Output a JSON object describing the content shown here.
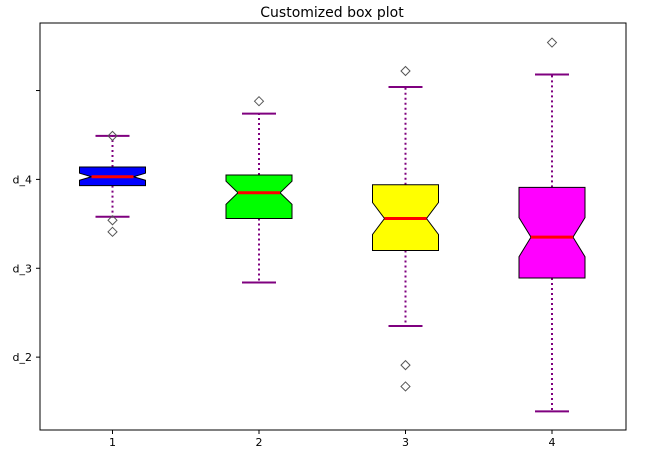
{
  "chart_data": {
    "type": "box",
    "title": "Customized box plot",
    "xlabel": "",
    "ylabel": "",
    "categories": [
      "1",
      "2",
      "3",
      "4"
    ],
    "ylim": [
      1.18,
      5.76
    ],
    "yticks": [
      {
        "value": 2.0,
        "label": "d_2"
      },
      {
        "value": 3.0,
        "label": "d_3"
      },
      {
        "value": 4.0,
        "label": "d_4"
      },
      {
        "value": 5.0,
        "label": ""
      }
    ],
    "grid": false,
    "boxes": [
      {
        "label": "1",
        "color": "#0000ff",
        "whisker_low": 3.58,
        "q1": 3.93,
        "median": 4.03,
        "q3": 4.14,
        "whisker_high": 4.49,
        "notch_low": 3.99,
        "notch_high": 4.07,
        "fliers": [
          4.49,
          3.54,
          3.41
        ]
      },
      {
        "label": "2",
        "color": "#00ff00",
        "whisker_low": 2.84,
        "q1": 3.56,
        "median": 3.85,
        "q3": 4.05,
        "whisker_high": 4.74,
        "notch_low": 3.72,
        "notch_high": 3.98,
        "fliers": [
          4.88
        ]
      },
      {
        "label": "3",
        "color": "#ffff00",
        "whisker_low": 2.35,
        "q1": 3.2,
        "median": 3.56,
        "q3": 3.94,
        "whisker_high": 5.04,
        "notch_low": 3.38,
        "notch_high": 3.74,
        "fliers": [
          5.22,
          1.91,
          1.67
        ]
      },
      {
        "label": "4",
        "color": "#ff00ff",
        "whisker_low": 1.39,
        "q1": 2.89,
        "median": 3.35,
        "q3": 3.91,
        "whisker_high": 5.18,
        "notch_low": 3.13,
        "notch_high": 3.57,
        "fliers": [
          5.54
        ]
      }
    ],
    "median_color": "#ff0000",
    "whisker_color": "#7f007f",
    "flier_marker": "diamond"
  }
}
